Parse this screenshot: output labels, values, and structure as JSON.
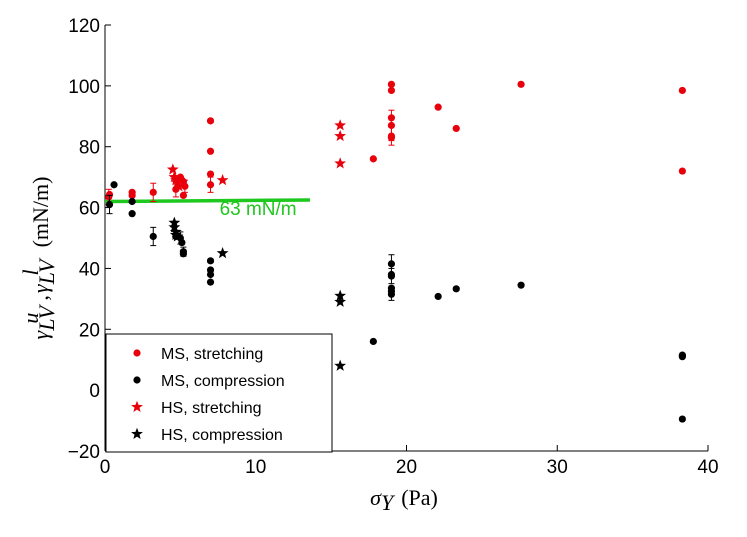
{
  "chart_data": {
    "type": "scatter",
    "xlabel": {
      "symbol": "σ",
      "subscript": "Y",
      "unit": "(Pa)"
    },
    "ylabel": {
      "symbol": "γ",
      "sub1": "LV",
      "sup1": "u",
      "sep": ",",
      "sub2": "LV",
      "sup2": "l",
      "unit": "(mN/m)"
    },
    "xlim": [
      0,
      40
    ],
    "ylim": [
      -20,
      120
    ],
    "xticks": [
      "0",
      "10",
      "20",
      "30",
      "40"
    ],
    "xtick_values": [
      0,
      10,
      20,
      30,
      40
    ],
    "yticks": [
      "−20",
      "0",
      "20",
      "40",
      "60",
      "80",
      "100",
      "120"
    ],
    "ytick_values": [
      -20,
      0,
      20,
      40,
      60,
      80,
      100,
      120
    ],
    "colors": {
      "red": "#e8000b",
      "black": "#000000",
      "green": "#1ec81e"
    },
    "reference_line": {
      "x": [
        0,
        13.6
      ],
      "y": [
        62,
        62.5
      ],
      "label": "63 mN/m",
      "label_pos": [
        7.6,
        57.6
      ],
      "color": "#1ec81e"
    },
    "legend": [
      {
        "label": "MS, stretching",
        "marker": "circle",
        "color": "#e8000b"
      },
      {
        "label": "MS, compression",
        "marker": "circle",
        "color": "#000000"
      },
      {
        "label": "HS, stretching",
        "marker": "star",
        "color": "#e8000b"
      },
      {
        "label": "HS, compression",
        "marker": "star",
        "color": "#000000"
      }
    ],
    "series": [
      {
        "name": "MS, stretching",
        "marker": "circle",
        "color": "#e8000b",
        "points": [
          {
            "x": 0.25,
            "y": 63.5,
            "err": 2.5
          },
          {
            "x": 0.3,
            "y": 64.3
          },
          {
            "x": 1.8,
            "y": 65
          },
          {
            "x": 1.8,
            "y": 64
          },
          {
            "x": 3.2,
            "y": 65,
            "err": 3
          },
          {
            "x": 4.7,
            "y": 66,
            "err": 2.5
          },
          {
            "x": 5,
            "y": 70
          },
          {
            "x": 5.1,
            "y": 69
          },
          {
            "x": 5.2,
            "y": 68.5
          },
          {
            "x": 5.3,
            "y": 67,
            "err": 2
          },
          {
            "x": 5.2,
            "y": 64
          },
          {
            "x": 7,
            "y": 88.5
          },
          {
            "x": 7,
            "y": 78.5
          },
          {
            "x": 7,
            "y": 71
          },
          {
            "x": 7,
            "y": 67.5,
            "err": 2.5
          },
          {
            "x": 17.8,
            "y": 76
          },
          {
            "x": 19,
            "y": 100.5
          },
          {
            "x": 19,
            "y": 98.5
          },
          {
            "x": 19,
            "y": 89.5
          },
          {
            "x": 19,
            "y": 87,
            "err": 5
          },
          {
            "x": 19,
            "y": 83
          },
          {
            "x": 19,
            "y": 83.5,
            "err": 3
          },
          {
            "x": 22.1,
            "y": 93
          },
          {
            "x": 23.3,
            "y": 86
          },
          {
            "x": 27.6,
            "y": 100.5
          },
          {
            "x": 38.3,
            "y": 98.5
          },
          {
            "x": 38.3,
            "y": 72
          }
        ]
      },
      {
        "name": "MS, compression",
        "marker": "circle",
        "color": "#000000",
        "points": [
          {
            "x": 0.3,
            "y": 61,
            "err": 3
          },
          {
            "x": 0.6,
            "y": 67.5
          },
          {
            "x": 1.8,
            "y": 58
          },
          {
            "x": 1.8,
            "y": 62
          },
          {
            "x": 3.2,
            "y": 50.5,
            "err": 3
          },
          {
            "x": 4.7,
            "y": 50.5
          },
          {
            "x": 5,
            "y": 50,
            "err": 2
          },
          {
            "x": 5.1,
            "y": 48.5
          },
          {
            "x": 5.2,
            "y": 45.5,
            "err": 1.5
          },
          {
            "x": 5.2,
            "y": 44.8
          },
          {
            "x": 7,
            "y": 42.5
          },
          {
            "x": 7,
            "y": 39.5
          },
          {
            "x": 7,
            "y": 38
          },
          {
            "x": 7,
            "y": 35.5
          },
          {
            "x": 17.8,
            "y": 16
          },
          {
            "x": 19,
            "y": 41.5,
            "err": 3
          },
          {
            "x": 19,
            "y": 38
          },
          {
            "x": 19,
            "y": 37.5,
            "err": 2.5
          },
          {
            "x": 19,
            "y": 33.5
          },
          {
            "x": 19,
            "y": 32.5
          },
          {
            "x": 19,
            "y": 31.5,
            "err": 2
          },
          {
            "x": 22.1,
            "y": 30.8
          },
          {
            "x": 23.3,
            "y": 33.3
          },
          {
            "x": 27.6,
            "y": 34.5
          },
          {
            "x": 38.3,
            "y": 11.5
          },
          {
            "x": 38.3,
            "y": 11
          },
          {
            "x": 38.3,
            "y": -9.5
          }
        ]
      },
      {
        "name": "HS, stretching",
        "marker": "star",
        "color": "#e8000b",
        "points": [
          {
            "x": 4.5,
            "y": 72.5
          },
          {
            "x": 4.6,
            "y": 70
          },
          {
            "x": 4.7,
            "y": 69
          },
          {
            "x": 4.8,
            "y": 68
          },
          {
            "x": 4.9,
            "y": 67
          },
          {
            "x": 7.8,
            "y": 69
          },
          {
            "x": 15.6,
            "y": 87
          },
          {
            "x": 15.6,
            "y": 83.5
          },
          {
            "x": 15.6,
            "y": 74.5
          }
        ]
      },
      {
        "name": "HS, compression",
        "marker": "star",
        "color": "#000000",
        "points": [
          {
            "x": 4.6,
            "y": 55
          },
          {
            "x": 4.6,
            "y": 53.5
          },
          {
            "x": 4.7,
            "y": 52
          },
          {
            "x": 4.7,
            "y": 51
          },
          {
            "x": 4.8,
            "y": 50.5
          },
          {
            "x": 7.8,
            "y": 45
          },
          {
            "x": 15.6,
            "y": 31
          },
          {
            "x": 15.6,
            "y": 29
          },
          {
            "x": 15.6,
            "y": 8
          }
        ]
      }
    ]
  }
}
